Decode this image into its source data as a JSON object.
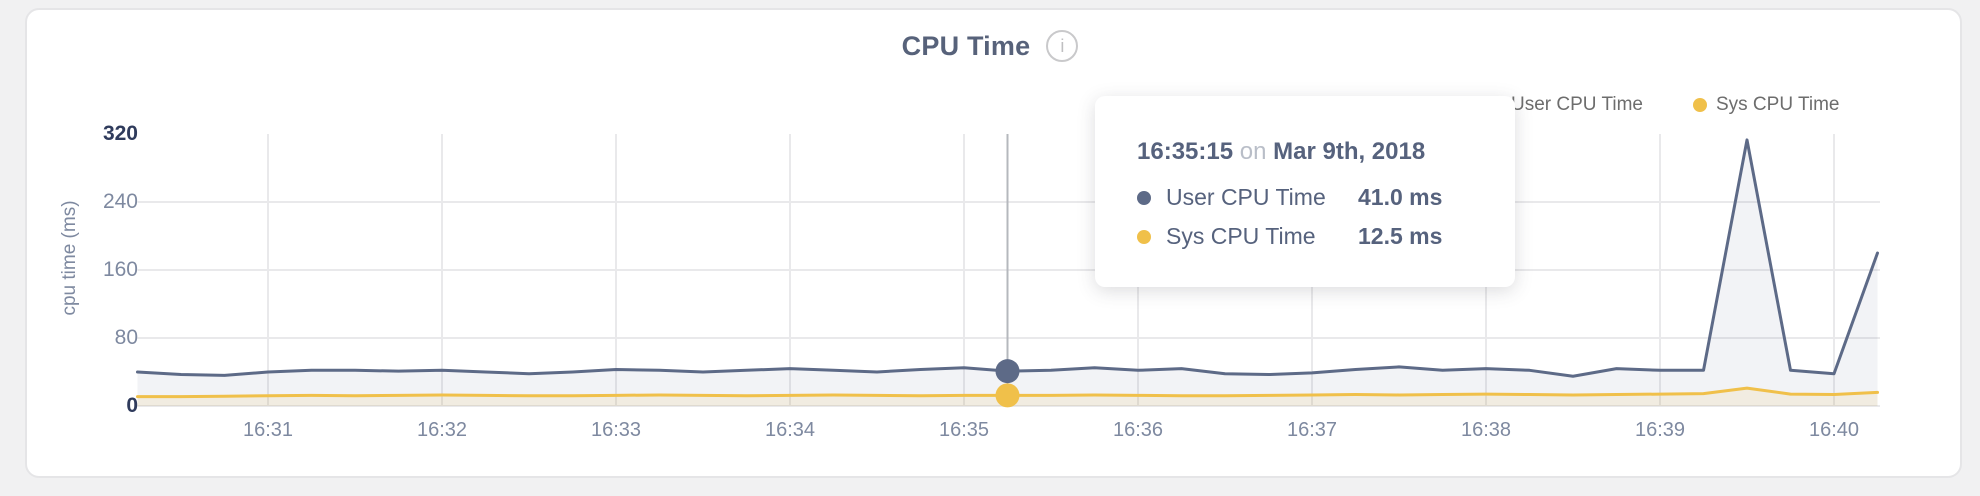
{
  "header": {
    "title": "CPU Time",
    "info_glyph": "i"
  },
  "legend": {
    "items": [
      {
        "label": "User CPU Time",
        "color": "#5d6a87"
      },
      {
        "label": "Sys CPU Time",
        "color": "#f0c04a"
      }
    ]
  },
  "axes": {
    "ylabel": "cpu time (ms)",
    "ytick_labels": [
      "0",
      "80",
      "160",
      "240",
      "320"
    ],
    "xtick_labels": [
      "16:31",
      "16:32",
      "16:33",
      "16:34",
      "16:35",
      "16:36",
      "16:37",
      "16:38",
      "16:39",
      "16:40"
    ]
  },
  "tooltip": {
    "time": "16:35:15",
    "preposition": "on",
    "date": "Mar 9th, 2018",
    "rows": [
      {
        "label": "User CPU Time",
        "value": "41.0 ms",
        "color": "#5d6a87"
      },
      {
        "label": "Sys CPU Time",
        "value": "12.5 ms",
        "color": "#f0c04a"
      }
    ]
  },
  "chart_data": {
    "type": "area",
    "title": "CPU Time",
    "xlabel": "",
    "ylabel": "cpu time (ms)",
    "ylim": [
      0,
      320
    ],
    "yticks": [
      0,
      80,
      160,
      240,
      320
    ],
    "xticks": [
      "16:31",
      "16:32",
      "16:33",
      "16:34",
      "16:35",
      "16:36",
      "16:37",
      "16:38",
      "16:39",
      "16:40"
    ],
    "grid": true,
    "legend_position": "top-right",
    "x_times": [
      "16:30:15",
      "16:30:30",
      "16:30:45",
      "16:31:00",
      "16:31:15",
      "16:31:30",
      "16:31:45",
      "16:32:00",
      "16:32:15",
      "16:32:30",
      "16:32:45",
      "16:33:00",
      "16:33:15",
      "16:33:30",
      "16:33:45",
      "16:34:00",
      "16:34:15",
      "16:34:30",
      "16:34:45",
      "16:35:00",
      "16:35:15",
      "16:35:30",
      "16:35:45",
      "16:36:00",
      "16:36:15",
      "16:36:30",
      "16:36:45",
      "16:37:00",
      "16:37:15",
      "16:37:30",
      "16:37:45",
      "16:38:00",
      "16:38:15",
      "16:38:30",
      "16:38:45",
      "16:39:00",
      "16:39:15",
      "16:39:30",
      "16:39:45",
      "16:40:00",
      "16:40:15"
    ],
    "series": [
      {
        "name": "User CPU Time",
        "color": "#5d6a87",
        "fill": "rgba(93,106,135,0.08)",
        "values": [
          40,
          37,
          36,
          40,
          42,
          42,
          41,
          42,
          40,
          38,
          40,
          43,
          42,
          40,
          42,
          44,
          42,
          40,
          43,
          45,
          41,
          42,
          45,
          42,
          44,
          38,
          37,
          39,
          43,
          46,
          42,
          44,
          42,
          35,
          44,
          42,
          42,
          313,
          42,
          38,
          180
        ]
      },
      {
        "name": "Sys CPU Time",
        "color": "#f0c04a",
        "fill": "rgba(240,192,74,0.12)",
        "values": [
          11,
          11,
          11.5,
          12,
          12.5,
          12,
          12.5,
          13,
          12.5,
          12,
          12,
          12.5,
          13,
          12.5,
          12,
          12.5,
          13,
          12.5,
          12,
          12.5,
          12.5,
          12.5,
          13,
          12.5,
          12,
          12,
          12.5,
          13,
          13.5,
          13,
          13.5,
          14,
          13.5,
          13,
          13.5,
          14,
          14.5,
          21,
          14,
          13.5,
          16
        ]
      }
    ],
    "hover": {
      "time": "16:35:15",
      "date": "Mar 9th, 2018",
      "values": {
        "User CPU Time": 41.0,
        "Sys CPU Time": 12.5
      },
      "unit": "ms"
    }
  }
}
